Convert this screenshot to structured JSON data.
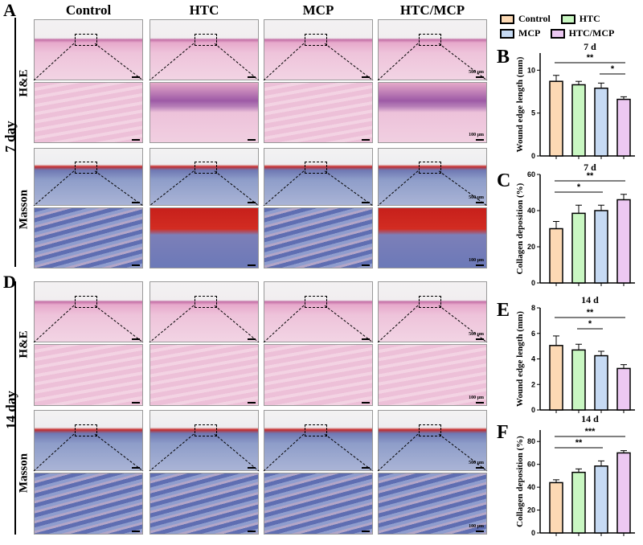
{
  "panel_labels": {
    "a": "A",
    "d": "D"
  },
  "columns": [
    "Control",
    "HTC",
    "MCP",
    "HTC/MCP"
  ],
  "row_labels": {
    "day7": "7 day",
    "day14": "14 day",
    "he": "H&E",
    "masson": "Masson"
  },
  "scale_bars": {
    "overview": "500 μm",
    "zoom": "100 μm"
  },
  "legend": [
    {
      "label": "Control",
      "color": "#fcd9b4"
    },
    {
      "label": "HTC",
      "color": "#c9f7c2"
    },
    {
      "label": "MCP",
      "color": "#c6daf3"
    },
    {
      "label": "HTC/MCP",
      "color": "#ecc8f2"
    }
  ],
  "chart_data": [
    {
      "panel": "B",
      "type": "bar",
      "title": "7 d",
      "ylabel": "Wound edge length (mm)",
      "ylim": [
        0,
        12
      ],
      "yticks": [
        "0",
        "5",
        "10"
      ],
      "ytick_values": [
        0,
        5,
        10
      ],
      "categories": [
        "Control",
        "HTC",
        "MCP",
        "HTC/MCP"
      ],
      "values": [
        8.7,
        8.3,
        7.9,
        6.6
      ],
      "errors": [
        0.7,
        0.4,
        0.6,
        0.3
      ],
      "significance": [
        {
          "from": 0,
          "to": 3,
          "label": "**"
        },
        {
          "from": 2,
          "to": 3,
          "label": "*"
        }
      ]
    },
    {
      "panel": "C",
      "type": "bar",
      "title": "7 d",
      "ylabel": "Collagen deposition (%)",
      "ylim": [
        0,
        60
      ],
      "yticks": [
        "0",
        "20",
        "40",
        "60"
      ],
      "ytick_values": [
        0,
        20,
        40,
        60
      ],
      "categories": [
        "Control",
        "HTC",
        "MCP",
        "HTC/MCP"
      ],
      "values": [
        30,
        38.5,
        40,
        46
      ],
      "errors": [
        4,
        4.5,
        3,
        3
      ],
      "significance": [
        {
          "from": 0,
          "to": 3,
          "label": "**"
        },
        {
          "from": 0,
          "to": 2,
          "label": "*"
        }
      ]
    },
    {
      "panel": "E",
      "type": "bar",
      "title": "14 d",
      "ylabel": "Wound edge length (mm)",
      "ylim": [
        0,
        8
      ],
      "yticks": [
        "0",
        "2",
        "4",
        "6",
        "8"
      ],
      "ytick_values": [
        0,
        2,
        4,
        6,
        8
      ],
      "categories": [
        "Control",
        "HTC",
        "MCP",
        "HTC/MCP"
      ],
      "values": [
        5.05,
        4.7,
        4.25,
        3.25
      ],
      "errors": [
        0.75,
        0.45,
        0.35,
        0.3
      ],
      "significance": [
        {
          "from": 0,
          "to": 3,
          "label": "**"
        },
        {
          "from": 1,
          "to": 2,
          "label": "*"
        }
      ]
    },
    {
      "panel": "F",
      "type": "bar",
      "title": "14 d",
      "ylabel": "Collagen deposition (%)",
      "ylim": [
        0,
        90
      ],
      "yticks": [
        "0",
        "20",
        "40",
        "60",
        "80"
      ],
      "ytick_values": [
        0,
        20,
        40,
        60,
        80
      ],
      "categories": [
        "Control",
        "HTC",
        "MCP",
        "HTC/MCP"
      ],
      "values": [
        44,
        53,
        58.5,
        70
      ],
      "errors": [
        2.5,
        3,
        4.5,
        2
      ],
      "significance": [
        {
          "from": 0,
          "to": 3,
          "label": "***"
        },
        {
          "from": 0,
          "to": 2,
          "label": "**"
        }
      ]
    }
  ]
}
